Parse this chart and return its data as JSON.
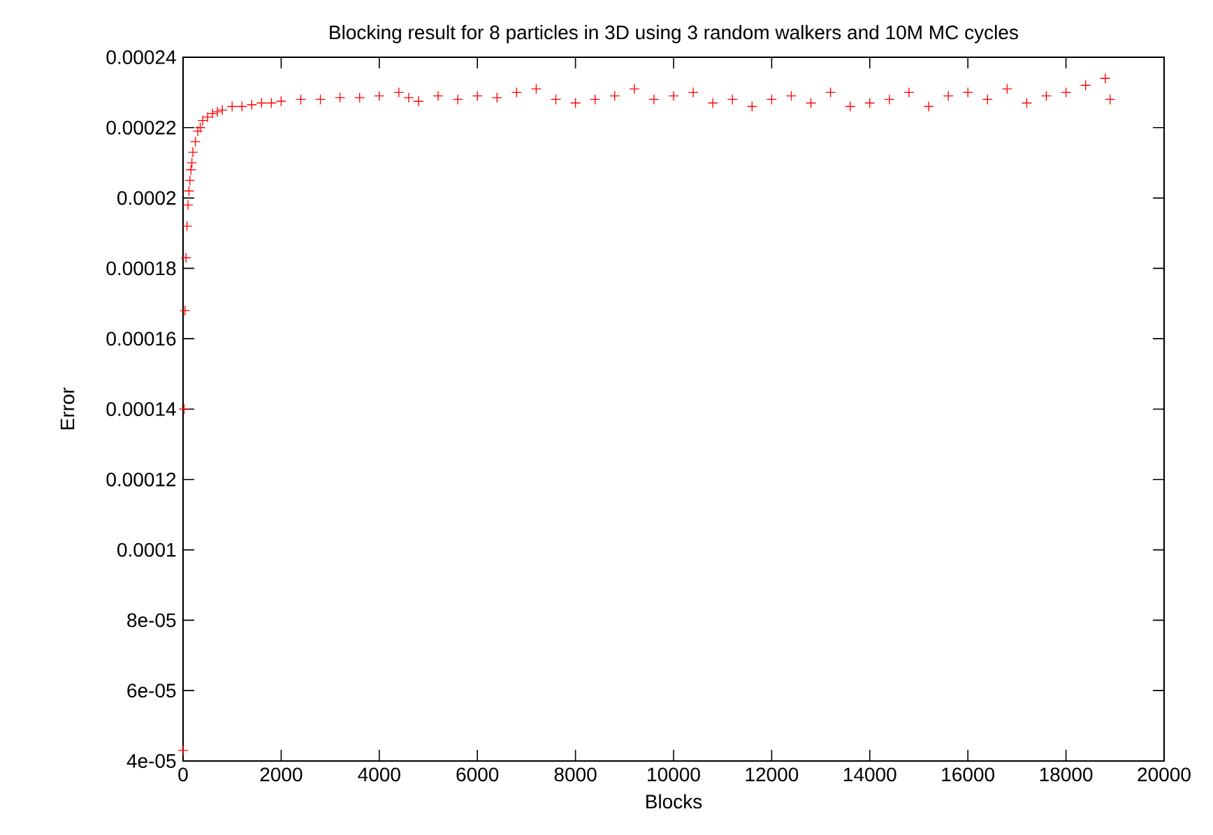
{
  "chart_data": {
    "type": "scatter",
    "title": "Blocking result for 8 particles in 3D using 3 random walkers and 10M MC cycles",
    "xlabel": "Blocks",
    "ylabel": "Error",
    "x": [
      0,
      20,
      40,
      60,
      80,
      100,
      120,
      140,
      160,
      180,
      200,
      250,
      300,
      350,
      400,
      500,
      600,
      700,
      800,
      1000,
      1200,
      1400,
      1600,
      1800,
      2000,
      2400,
      2800,
      3200,
      3600,
      4000,
      4400,
      4600,
      4800,
      5200,
      5600,
      6000,
      6400,
      6800,
      7200,
      7600,
      8000,
      8400,
      8800,
      9200,
      9600,
      10000,
      10400,
      10800,
      11200,
      11600,
      12000,
      12400,
      12800,
      13200,
      13600,
      14000,
      14400,
      14800,
      15200,
      15600,
      16000,
      16400,
      16800,
      17200,
      17600,
      18000,
      18400,
      18800,
      18900
    ],
    "series": [
      {
        "color": "#ff0000",
        "values": [
          4.3e-05,
          0.00014,
          0.000168,
          0.000183,
          0.000192,
          0.000198,
          0.000202,
          0.000205,
          0.000208,
          0.00021,
          0.000213,
          0.000216,
          0.000219,
          0.00022,
          0.000222,
          0.000223,
          0.000224,
          0.0002245,
          0.000225,
          0.000226,
          0.000226,
          0.0002265,
          0.000227,
          0.000227,
          0.0002275,
          0.000228,
          0.000228,
          0.0002285,
          0.0002285,
          0.000229,
          0.00023,
          0.0002285,
          0.0002275,
          0.000229,
          0.000228,
          0.000229,
          0.0002285,
          0.00023,
          0.000231,
          0.000228,
          0.000227,
          0.000228,
          0.000229,
          0.000231,
          0.000228,
          0.000229,
          0.00023,
          0.000227,
          0.000228,
          0.000226,
          0.000228,
          0.000229,
          0.000227,
          0.00023,
          0.000226,
          0.000227,
          0.000228,
          0.00023,
          0.000226,
          0.000229,
          0.00023,
          0.000228,
          0.000231,
          0.000227,
          0.000229,
          0.00023,
          0.000232,
          0.000234,
          0.000228
        ]
      }
    ],
    "xlim": [
      0,
      20000
    ],
    "xticks": [
      0,
      2000,
      4000,
      6000,
      8000,
      10000,
      12000,
      14000,
      16000,
      18000,
      20000
    ],
    "ylim": [
      4e-05,
      0.00024
    ],
    "yticks": [
      {
        "value": 4e-05,
        "label": "4e-05"
      },
      {
        "value": 6e-05,
        "label": "6e-05"
      },
      {
        "value": 8e-05,
        "label": "8e-05"
      },
      {
        "value": 0.0001,
        "label": "0.0001"
      },
      {
        "value": 0.00012,
        "label": "0.00012"
      },
      {
        "value": 0.00014,
        "label": "0.00014"
      },
      {
        "value": 0.00016,
        "label": "0.00016"
      },
      {
        "value": 0.00018,
        "label": "0.00018"
      },
      {
        "value": 0.0002,
        "label": "0.0002"
      },
      {
        "value": 0.00022,
        "label": "0.00022"
      },
      {
        "value": 0.00024,
        "label": "0.00024"
      }
    ],
    "marker": "cross",
    "grid": false
  }
}
